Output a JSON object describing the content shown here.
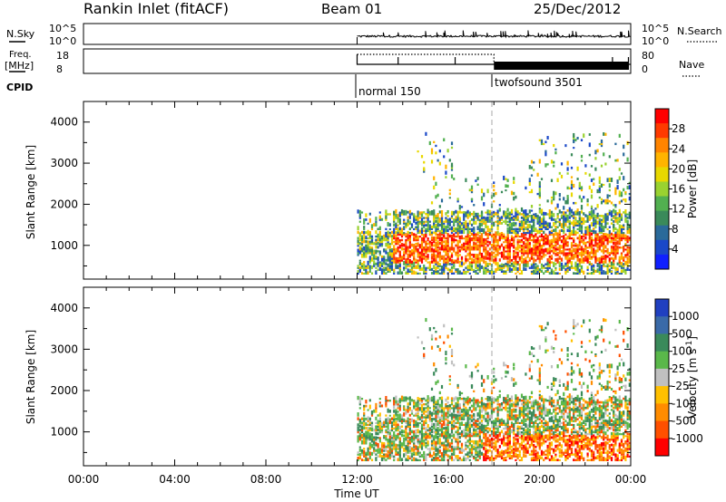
{
  "header": {
    "station": "Rankin Inlet (fitACF)",
    "beam": "Beam 01",
    "date": "25/Dec/2012"
  },
  "top_panels": {
    "nsky_label": "N.Sky",
    "freq_label_1": "Freq.",
    "freq_label_2": "[MHz]",
    "cpid_label": "CPID",
    "nsearch_label": "N.Search",
    "nave_label": "Nave",
    "noise_ticks": [
      "10^5",
      "10^0"
    ],
    "freq_ticks": [
      "18",
      "8"
    ],
    "nave_ticks": [
      "80",
      "0"
    ],
    "cpid_segments": [
      {
        "label": "normal 150",
        "start_hour": 12
      },
      {
        "label": "twofsound 3501",
        "start_hour": 18
      }
    ]
  },
  "chart_data": [
    {
      "type": "heatmap",
      "title": "Power",
      "ylabel": "Slant Range [km]",
      "xlabel": "",
      "x_range_hours": [
        0,
        24
      ],
      "ylim": [
        180,
        4500
      ],
      "yticks": [
        "1000",
        "2000",
        "3000",
        "4000"
      ],
      "colorbar_label": "Power [dB]",
      "colorbar_ticks": [
        "28",
        "24",
        "20",
        "16",
        "12",
        "8",
        "4"
      ],
      "colorbar_colors": [
        "#ff0000",
        "#ff3a00",
        "#ff8400",
        "#ffb400",
        "#e8d800",
        "#9ad230",
        "#52b050",
        "#3a8a5a",
        "#2a6a9a",
        "#1a48c8",
        "#1020ff"
      ],
      "colorbar_range": [
        0,
        30
      ],
      "data_start_hour": 12
    },
    {
      "type": "heatmap",
      "title": "Velocity",
      "ylabel": "Slant Range [km]",
      "xlabel": "Time UT",
      "x_range_hours": [
        0,
        24
      ],
      "xticks": [
        "00:00",
        "04:00",
        "08:00",
        "12:00",
        "16:00",
        "20:00",
        "00:00"
      ],
      "ylim": [
        180,
        4500
      ],
      "yticks": [
        "1000",
        "2000",
        "3000",
        "4000"
      ],
      "colorbar_label": "Velocity [m s^-1]",
      "colorbar_ticks": [
        "1000",
        "500",
        "100",
        "25",
        "-25",
        "-100",
        "-500",
        "-1000"
      ],
      "colorbar_colors": [
        "#2040c0",
        "#3a6aa8",
        "#3a8a5a",
        "#5ab84a",
        "#c0c0c0",
        "#ffc000",
        "#ff8c00",
        "#ff5000",
        "#ff0000"
      ],
      "data_start_hour": 12
    }
  ]
}
